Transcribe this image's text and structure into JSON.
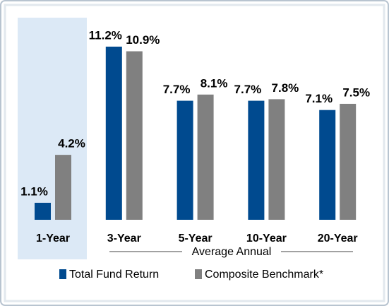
{
  "chart_data": {
    "type": "bar",
    "categories": [
      "1-Year",
      "3-Year",
      "5-Year",
      "10-Year",
      "20-Year"
    ],
    "series": [
      {
        "name": "Total Fund Return",
        "color": "#004a8f",
        "values": [
          1.1,
          11.2,
          7.7,
          7.7,
          7.1
        ],
        "value_labels": [
          "1.1%",
          "11.2%",
          "7.7%",
          "7.7%",
          "7.1%"
        ]
      },
      {
        "name": "Composite Benchmark*",
        "color": "#808080",
        "values": [
          4.2,
          10.9,
          8.1,
          7.8,
          7.5
        ],
        "value_labels": [
          "4.2%",
          "10.9%",
          "8.1%",
          "7.8%",
          "7.5%"
        ]
      }
    ],
    "annotation": "Average Annual"
  }
}
